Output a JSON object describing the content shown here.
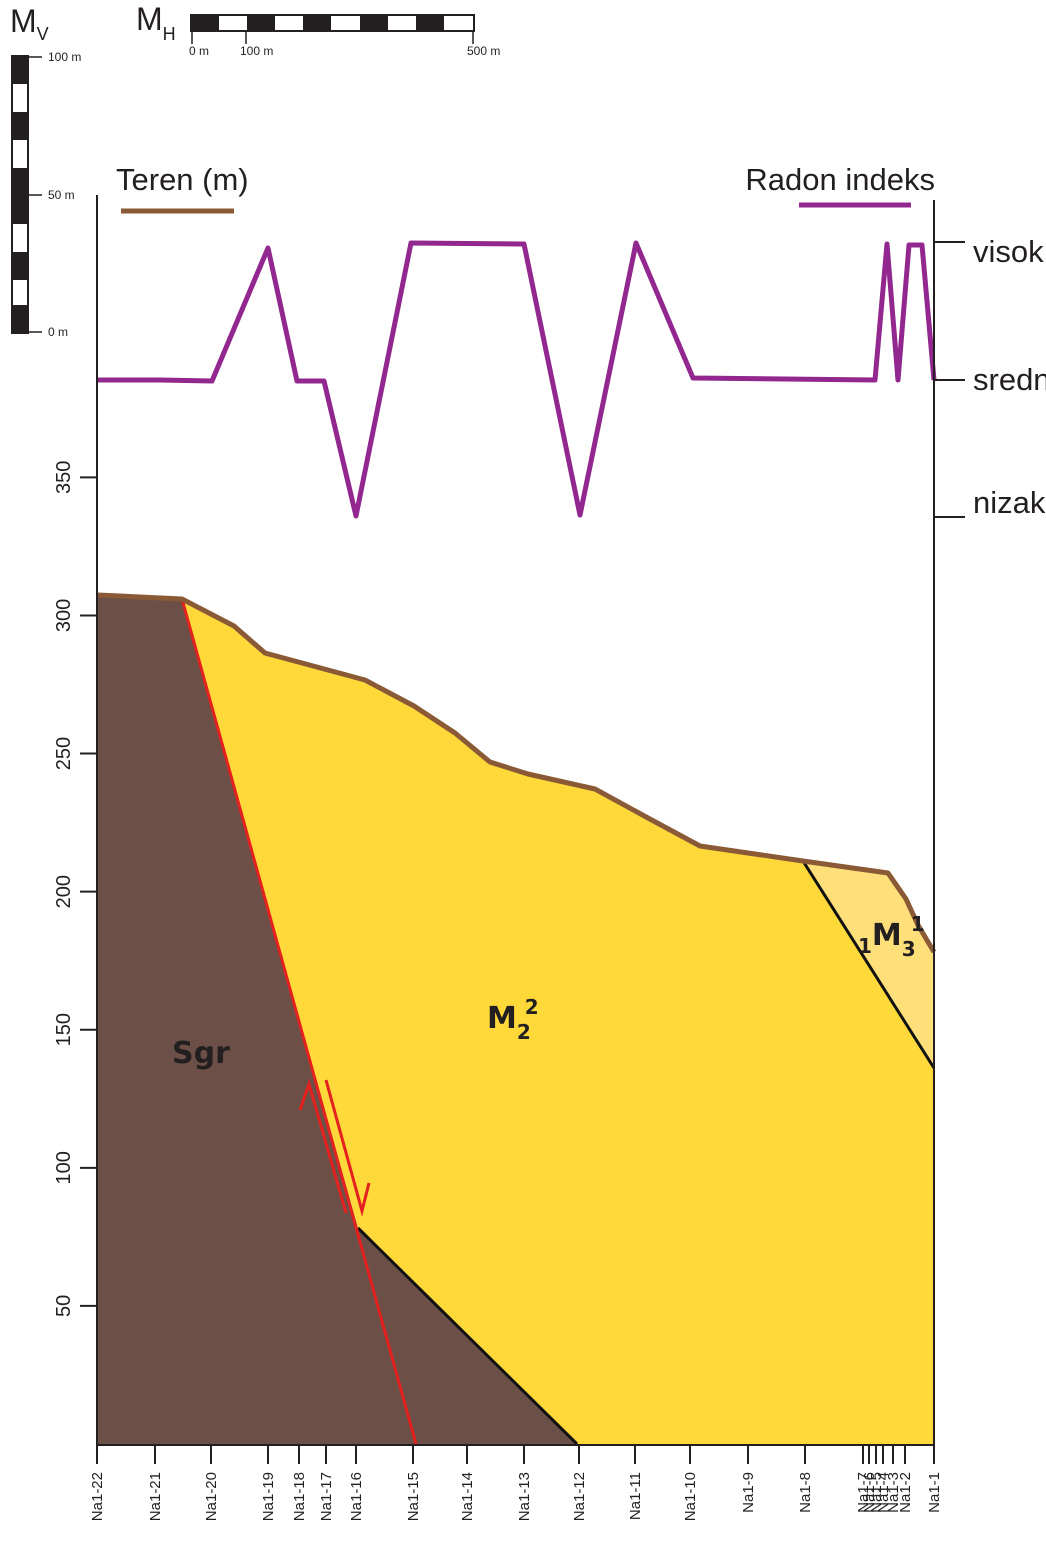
{
  "scale_bars": {
    "vertical": {
      "title": "M",
      "sub": "V",
      "labels": [
        "100 m",
        "50 m",
        "0 m"
      ]
    },
    "horizontal": {
      "title": "M",
      "sub": "H",
      "labels": [
        "0 m",
        "100 m",
        "500 m"
      ]
    }
  },
  "legend": {
    "terrain": {
      "label": "Teren (m)",
      "color": "#8a5a36"
    },
    "radon": {
      "label": "Radon indeks",
      "color": "#92278f"
    }
  },
  "radon_levels": [
    "visok",
    "srednji",
    "nizak"
  ],
  "units": {
    "sgr": {
      "label": "Sgr",
      "color": "#6c5047"
    },
    "m22": {
      "label_main": "M",
      "label_sub": "2",
      "label_sup": "2",
      "color": "#ffd83a"
    },
    "m31": {
      "label_pre": "1",
      "label_main": "M",
      "label_sub": "3",
      "label_sup": "1",
      "color": "#ffdf7a"
    }
  },
  "chart_data": {
    "type": "line",
    "ylabel": "",
    "yticks": [
      50,
      100,
      150,
      200,
      250,
      300,
      350
    ],
    "stations": [
      "Na1-22",
      "Na1-21",
      "Na1-20",
      "Na1-19",
      "Na1-18",
      "Na1-17",
      "Na1-16",
      "Na1-15",
      "Na1-14",
      "Na1-13",
      "Na1-12",
      "Na1-11",
      "Na1-10",
      "Na1-9",
      "Na1-8",
      "Na1-7",
      "Na1-6",
      "Na1-5",
      "Na1-4",
      "Na1-3",
      "Na1-2",
      "Na1-1"
    ],
    "series": [
      {
        "key": "radon",
        "levels_per_station": [
          "srednji",
          "srednji",
          "srednji",
          "visok",
          "srednji",
          "srednji",
          "nizak",
          "visok",
          "visok",
          "visok",
          "nizak",
          "visok",
          "srednji",
          "srednji",
          "srednji",
          "srednji",
          "visok",
          "srednji",
          "visok",
          "visok",
          "visok",
          "srednji"
        ]
      },
      {
        "key": "terrain",
        "elevation_m": [
          307,
          306,
          296,
          287,
          282,
          279,
          277,
          267,
          247,
          244,
          237,
          227,
          217,
          214,
          212,
          210,
          208,
          207,
          200,
          193,
          186,
          179
        ]
      }
    ]
  }
}
